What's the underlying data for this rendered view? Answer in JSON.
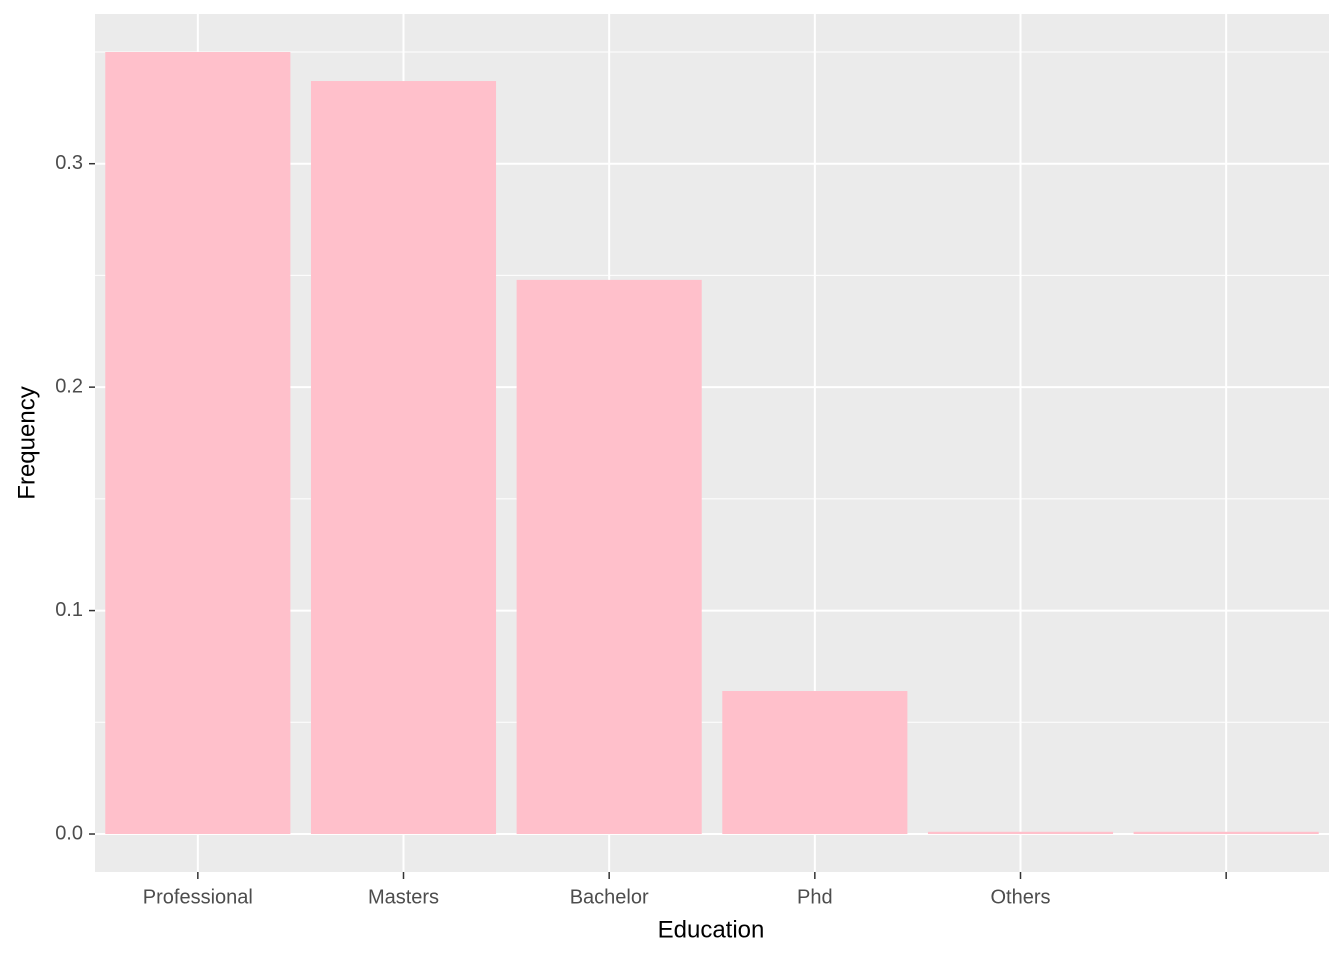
{
  "chart_data": {
    "type": "bar",
    "x_label": "Education",
    "y_label": "Frequency",
    "categories": [
      "Professional",
      "Masters",
      "Bachelor",
      "Phd",
      "Others",
      null
    ],
    "values": [
      0.35,
      0.337,
      0.248,
      0.064,
      0.001,
      0.001
    ],
    "color": "#ffc0cb",
    "ylim": [
      -0.017,
      0.367
    ],
    "yticks": [
      {
        "value": 0,
        "label": "0.0"
      },
      0.1,
      0.2,
      0.3
    ],
    "grid": true
  }
}
